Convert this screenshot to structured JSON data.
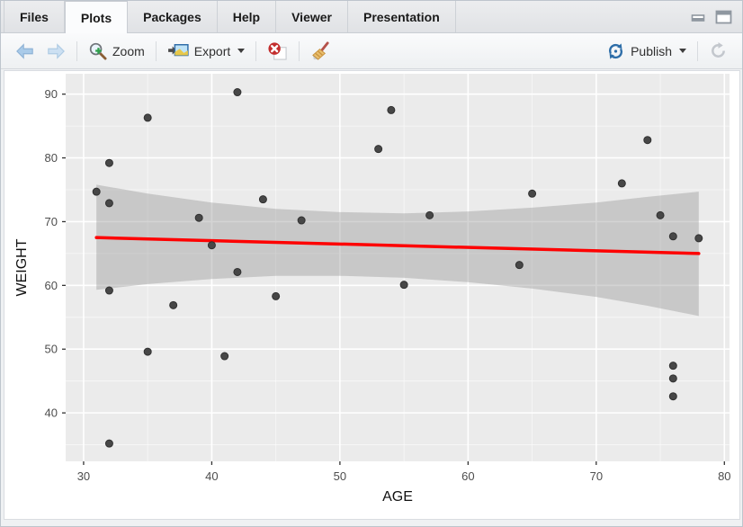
{
  "window": {
    "tabs": [
      {
        "label": "Files"
      },
      {
        "label": "Plots"
      },
      {
        "label": "Packages"
      },
      {
        "label": "Help"
      },
      {
        "label": "Viewer"
      },
      {
        "label": "Presentation"
      }
    ],
    "active_tab": "Plots",
    "controls": [
      "minimize",
      "maximize"
    ]
  },
  "toolbar": {
    "icons": [
      "back",
      "forward",
      "zoom-in",
      "export-image",
      "remove-plot",
      "clear-all-plots",
      "publish",
      "refresh"
    ],
    "zoom_label": "Zoom",
    "export_label": "Export",
    "publish_label": "Publish"
  },
  "chart_data": {
    "type": "scatter",
    "title": "",
    "xlabel": "AGE",
    "ylabel": "WEIGHT",
    "xlim": [
      28.6,
      80.4
    ],
    "ylim": [
      32.4,
      93.2
    ],
    "xticks": [
      30,
      40,
      50,
      60,
      70,
      80
    ],
    "yticks": [
      40,
      50,
      60,
      70,
      80,
      90
    ],
    "grid": "major-and-minor, white on gray panel",
    "legend": "none",
    "points": [
      [
        31,
        74.7
      ],
      [
        32,
        79.2
      ],
      [
        32,
        72.9
      ],
      [
        32,
        59.2
      ],
      [
        32,
        35.2
      ],
      [
        35,
        86.3
      ],
      [
        35,
        49.6
      ],
      [
        37,
        56.9
      ],
      [
        39,
        70.6
      ],
      [
        40,
        66.3
      ],
      [
        41,
        48.9
      ],
      [
        42,
        90.3
      ],
      [
        42,
        62.1
      ],
      [
        44,
        73.5
      ],
      [
        45,
        58.3
      ],
      [
        47,
        70.2
      ],
      [
        53,
        81.4
      ],
      [
        54,
        87.5
      ],
      [
        55,
        60.1
      ],
      [
        57,
        71.0
      ],
      [
        64,
        63.2
      ],
      [
        65,
        74.4
      ],
      [
        72,
        76.0
      ],
      [
        74,
        82.8
      ],
      [
        75,
        71.0
      ],
      [
        76,
        67.7
      ],
      [
        76,
        47.4
      ],
      [
        76,
        45.4
      ],
      [
        76,
        42.6
      ],
      [
        78,
        67.4
      ]
    ],
    "trend": {
      "type": "linear-regression",
      "x": [
        31,
        78
      ],
      "y": [
        67.5,
        65.0
      ]
    },
    "ci_band": {
      "x": [
        31,
        35,
        40,
        45,
        50,
        55,
        60,
        65,
        70,
        74,
        78
      ],
      "upper": [
        75.8,
        74.4,
        73.0,
        72.0,
        71.5,
        71.3,
        71.6,
        72.2,
        73.0,
        73.9,
        74.7
      ],
      "lower": [
        59.3,
        60.2,
        61.0,
        61.5,
        61.5,
        61.2,
        60.5,
        59.5,
        58.2,
        56.8,
        55.2
      ]
    },
    "colors": {
      "panel_bg": "#EBEBEB",
      "grid": "#FFFFFF",
      "point": "#474747",
      "point_stroke": "#303030",
      "trend": "#FE0000",
      "band_fill": "#999999",
      "band_opacity": 0.42,
      "tick": "#333333",
      "tick_label": "#4D4D4D",
      "axis_title": "#111111"
    }
  }
}
